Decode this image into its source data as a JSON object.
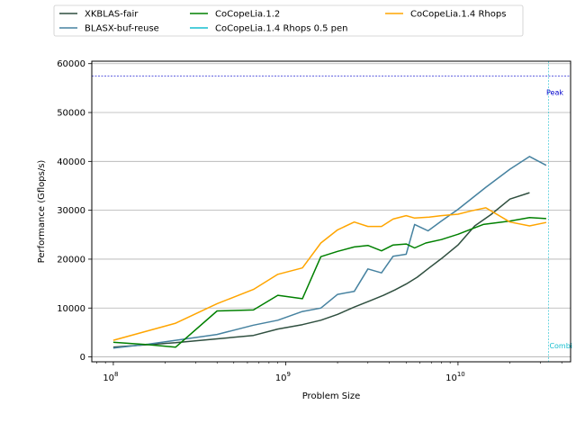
{
  "chart_data": {
    "type": "line",
    "title": "",
    "xlabel": "Problem Size",
    "ylabel": "Performance (Gflops/s)",
    "xscale": "log",
    "xlim": [
      75000000,
      45000000000
    ],
    "ylim": [
      -1000,
      60500
    ],
    "grid": "horizontal",
    "legend_position": "top",
    "xtick_labels": [
      {
        "value": 100000000,
        "base": "10",
        "exp": "8"
      },
      {
        "value": 1000000000,
        "base": "10",
        "exp": "9"
      },
      {
        "value": 10000000000,
        "base": "10",
        "exp": "10"
      }
    ],
    "ytick_labels": [
      {
        "value": 0,
        "label": "0"
      },
      {
        "value": 10000,
        "label": "10000"
      },
      {
        "value": 20000,
        "label": "20000"
      },
      {
        "value": 30000,
        "label": "30000"
      },
      {
        "value": 40000,
        "label": "40000"
      },
      {
        "value": 50000,
        "label": "50000"
      },
      {
        "value": 60000,
        "label": "60000"
      }
    ],
    "series": [
      {
        "name": "XKBLAS-fair",
        "color": "#2f4f3f",
        "x": [
          100000000,
          230000000,
          400000000,
          650000000,
          900000000,
          1250000000,
          1600000000,
          2000000000,
          2500000000,
          3100000000,
          3700000000,
          4300000000,
          5000000000,
          5800000000,
          6800000000,
          8000000000,
          10000000000,
          12500000000,
          15500000000,
          20000000000,
          26000000000
        ],
        "y": [
          2000,
          2900,
          3700,
          4400,
          5700,
          6600,
          7500,
          8700,
          10200,
          11500,
          12600,
          13700,
          14900,
          16300,
          18200,
          20100,
          22900,
          26800,
          29100,
          32300,
          33600
        ]
      },
      {
        "name": "BLASX-buf-reuse",
        "color": "#4682a0",
        "x": [
          100000000,
          160000000,
          230000000,
          400000000,
          650000000,
          900000000,
          1250000000,
          1600000000,
          2000000000,
          2500000000,
          3000000000,
          3600000000,
          4200000000,
          5000000000,
          5600000000,
          6700000000,
          8000000000,
          10000000000,
          14500000000,
          20000000000,
          26000000000,
          32500000000
        ],
        "y": [
          1800,
          2600,
          3400,
          4600,
          6500,
          7500,
          9300,
          10000,
          12800,
          13400,
          18000,
          17200,
          20600,
          21000,
          27100,
          25800,
          27800,
          30200,
          34700,
          38400,
          41000,
          39200
        ]
      },
      {
        "name": "CoCopeLia.1.2",
        "color": "#008000",
        "x": [
          100000000,
          160000000,
          230000000,
          400000000,
          650000000,
          900000000,
          1250000000,
          1600000000,
          2000000000,
          2500000000,
          3000000000,
          3600000000,
          4200000000,
          5000000000,
          5600000000,
          6500000000,
          8000000000,
          10000000000,
          14000000000,
          20000000000,
          26000000000,
          32500000000
        ],
        "y": [
          3000,
          2500,
          2000,
          9400,
          9600,
          12600,
          11900,
          20500,
          21600,
          22500,
          22800,
          21700,
          22900,
          23100,
          22300,
          23300,
          24000,
          25100,
          27100,
          27800,
          28500,
          28300
        ]
      },
      {
        "name": "CoCopeLia.1.4 Rhops 0.5 pen",
        "color": "#17becf",
        "x": [],
        "y": []
      },
      {
        "name": "CoCopeLia.1.4 Rhops",
        "color": "#ffa500",
        "x": [
          100000000,
          230000000,
          400000000,
          650000000,
          900000000,
          1250000000,
          1600000000,
          2000000000,
          2500000000,
          3000000000,
          3600000000,
          4200000000,
          5000000000,
          5600000000,
          6800000000,
          8000000000,
          10000000000,
          12000000000,
          14500000000,
          20000000000,
          26000000000,
          32500000000
        ],
        "y": [
          3400,
          6900,
          10900,
          13800,
          16900,
          18200,
          23300,
          26000,
          27600,
          26700,
          26700,
          28200,
          28900,
          28400,
          28600,
          28900,
          29200,
          29900,
          30500,
          27600,
          26800,
          27500
        ]
      }
    ],
    "annotations": [
      {
        "text": "Peak",
        "color": "#0000cc",
        "style": "hline",
        "y": 57500
      },
      {
        "text": "Combi",
        "color": "#17becf",
        "style": "vline",
        "x": 33500000000
      }
    ]
  }
}
